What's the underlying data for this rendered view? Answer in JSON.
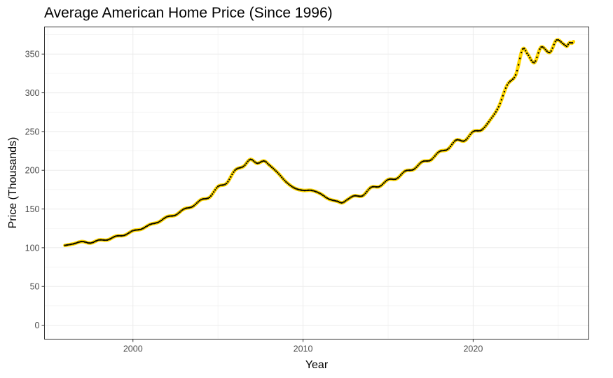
{
  "chart_data": {
    "type": "line",
    "title": "Average American Home Price (Since 1996)",
    "xlabel": "Year",
    "ylabel": "Price (Thousands)",
    "xlim": [
      1994.8,
      2026.8
    ],
    "ylim": [
      -18,
      385
    ],
    "x_ticks": [
      2000,
      2010,
      2020
    ],
    "y_ticks": [
      0,
      50,
      100,
      150,
      200,
      250,
      300,
      350
    ],
    "grid": true,
    "legend": "none",
    "series": [
      {
        "color": "#ffd700",
        "point_color": "#000000",
        "points": [
          [
            1996.0,
            103
          ],
          [
            1996.5,
            105
          ],
          [
            1997.0,
            108
          ],
          [
            1997.5,
            106
          ],
          [
            1998.0,
            110
          ],
          [
            1998.5,
            110
          ],
          [
            1999.0,
            115
          ],
          [
            1999.5,
            116
          ],
          [
            2000.0,
            122
          ],
          [
            2000.5,
            124
          ],
          [
            2001.0,
            130
          ],
          [
            2001.5,
            133
          ],
          [
            2002.0,
            140
          ],
          [
            2002.5,
            142
          ],
          [
            2003.0,
            150
          ],
          [
            2003.5,
            153
          ],
          [
            2004.0,
            162
          ],
          [
            2004.5,
            165
          ],
          [
            2005.0,
            179
          ],
          [
            2005.5,
            183
          ],
          [
            2006.0,
            200
          ],
          [
            2006.5,
            205
          ],
          [
            2006.9,
            214
          ],
          [
            2007.3,
            209
          ],
          [
            2007.7,
            212
          ],
          [
            2008.0,
            207
          ],
          [
            2008.5,
            197
          ],
          [
            2009.0,
            185
          ],
          [
            2009.5,
            177
          ],
          [
            2010.0,
            174
          ],
          [
            2010.5,
            174
          ],
          [
            2011.0,
            170
          ],
          [
            2011.5,
            163
          ],
          [
            2012.0,
            160
          ],
          [
            2012.3,
            158
          ],
          [
            2012.6,
            162
          ],
          [
            2013.0,
            167
          ],
          [
            2013.5,
            167
          ],
          [
            2014.0,
            178
          ],
          [
            2014.5,
            179
          ],
          [
            2015.0,
            188
          ],
          [
            2015.5,
            189
          ],
          [
            2016.0,
            199
          ],
          [
            2016.5,
            201
          ],
          [
            2017.0,
            211
          ],
          [
            2017.5,
            213
          ],
          [
            2018.0,
            224
          ],
          [
            2018.5,
            227
          ],
          [
            2019.0,
            239
          ],
          [
            2019.5,
            238
          ],
          [
            2020.0,
            250
          ],
          [
            2020.5,
            252
          ],
          [
            2021.0,
            265
          ],
          [
            2021.5,
            282
          ],
          [
            2022.0,
            310
          ],
          [
            2022.5,
            323
          ],
          [
            2022.9,
            356
          ],
          [
            2023.2,
            350
          ],
          [
            2023.6,
            339
          ],
          [
            2024.0,
            359
          ],
          [
            2024.5,
            352
          ],
          [
            2024.9,
            368
          ],
          [
            2025.3,
            363
          ],
          [
            2025.5,
            360
          ],
          [
            2025.6,
            363
          ],
          [
            2025.7,
            365
          ],
          [
            2025.8,
            364
          ],
          [
            2025.9,
            366
          ]
        ]
      }
    ]
  }
}
